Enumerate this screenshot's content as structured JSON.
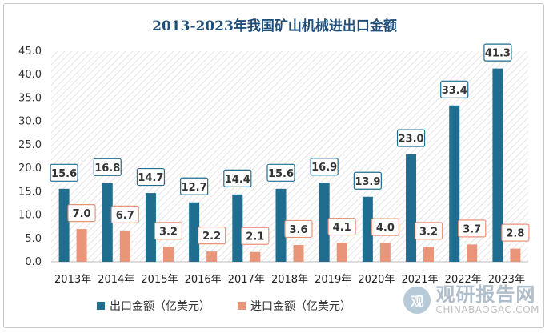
{
  "chart_data": {
    "type": "bar",
    "title": "2013-2023年我国矿山机械进出口金额",
    "categories": [
      "2013年",
      "2014年",
      "2015年",
      "2016年",
      "2017年",
      "2018年",
      "2019年",
      "2020年",
      "2021年",
      "2022年",
      "2023年"
    ],
    "series": [
      {
        "name": "出口金额（亿美元）",
        "color": "#1f6d8f",
        "values": [
          15.6,
          16.8,
          14.7,
          12.7,
          14.4,
          15.6,
          16.9,
          13.9,
          23.0,
          33.4,
          41.3
        ]
      },
      {
        "name": "进口金额（亿美元）",
        "color": "#e8957a",
        "values": [
          7.0,
          6.7,
          3.2,
          2.2,
          2.1,
          3.6,
          4.1,
          4.0,
          3.2,
          3.7,
          2.8
        ]
      }
    ],
    "ylim": [
      0,
      45
    ],
    "yticks": [
      "0.0",
      "5.0",
      "10.0",
      "15.0",
      "20.0",
      "25.0",
      "30.0",
      "35.0",
      "40.0",
      "45.0"
    ],
    "xlabel": "",
    "ylabel": "",
    "grid": false,
    "legend_position": "bottom",
    "data_labels": true
  },
  "watermark": {
    "logo_text": "观",
    "cn": "观研报告网",
    "en": "CHINABAOGAO.COM"
  }
}
